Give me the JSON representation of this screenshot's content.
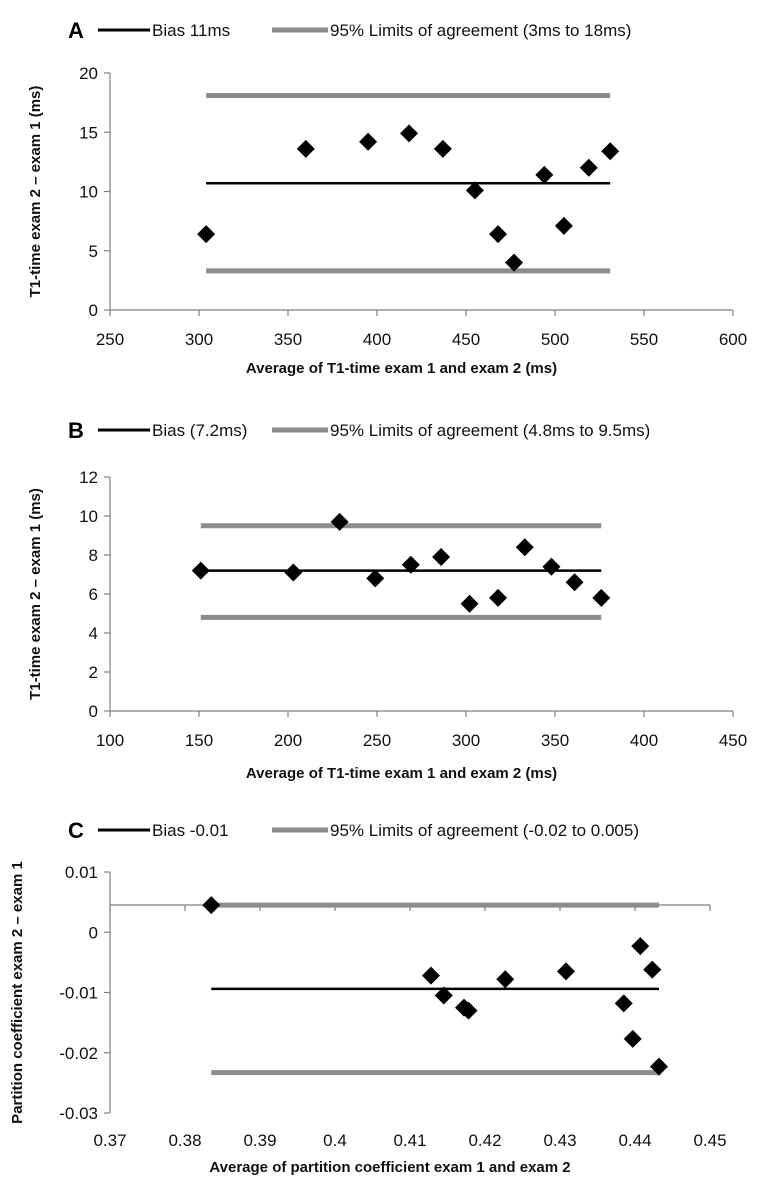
{
  "colors": {
    "bias": "#000000",
    "limits": "#8c8c8c",
    "marker": "#000000",
    "axis": "#7f7f7f"
  },
  "chart_data": [
    {
      "panel": "A",
      "type": "scatter",
      "legend": {
        "bias": "Bias 11ms",
        "limits": "95% Limits of agreement (3ms to 18ms)"
      },
      "xlabel": "Average of T1-time exam 1 and exam 2 (ms)",
      "ylabel": "T1-time exam 2 – exam 1 (ms)",
      "xlim": [
        250,
        600
      ],
      "ylim": [
        0,
        20
      ],
      "xticks": [
        250,
        300,
        350,
        400,
        450,
        500,
        550,
        600
      ],
      "xtick_labels": [
        "250",
        "300",
        "350",
        "400",
        "450",
        "500",
        "550",
        "600"
      ],
      "yticks": [
        0,
        5,
        10,
        15,
        20
      ],
      "ytick_labels": [
        "0",
        "5",
        "10",
        "15",
        "20"
      ],
      "x": [
        304,
        360,
        395,
        418,
        437,
        455,
        468,
        477,
        494,
        505,
        519,
        531
      ],
      "y": [
        6.4,
        13.6,
        14.2,
        14.9,
        13.6,
        10.1,
        6.4,
        4.0,
        11.4,
        7.1,
        12.0,
        13.4
      ],
      "bias": 10.7,
      "limits": [
        3.3,
        18.1
      ],
      "line_x": [
        304,
        531
      ]
    },
    {
      "panel": "B",
      "type": "scatter",
      "legend": {
        "bias": "Bias (7.2ms)",
        "limits": "95% Limits of agreement (4.8ms to 9.5ms)"
      },
      "xlabel": "Average of T1-time exam 1 and exam 2 (ms)",
      "ylabel": "T1-time exam 2 – exam 1 (ms)",
      "xlim": [
        100,
        450
      ],
      "ylim": [
        0,
        12
      ],
      "xticks": [
        100,
        150,
        200,
        250,
        300,
        350,
        400,
        450
      ],
      "xtick_labels": [
        "100",
        "150",
        "200",
        "250",
        "300",
        "350",
        "400",
        "450"
      ],
      "yticks": [
        0,
        2,
        4,
        6,
        8,
        10,
        12
      ],
      "ytick_labels": [
        "0",
        "2",
        "4",
        "6",
        "8",
        "10",
        "12"
      ],
      "x": [
        151,
        203,
        229,
        249,
        269,
        286,
        302,
        318,
        333,
        348,
        361,
        376
      ],
      "y": [
        7.2,
        7.1,
        9.7,
        6.8,
        7.5,
        7.9,
        5.5,
        5.8,
        8.4,
        7.4,
        6.6,
        5.8
      ],
      "bias": 7.2,
      "limits": [
        4.8,
        9.5
      ],
      "line_x": [
        151,
        376
      ]
    },
    {
      "panel": "C",
      "type": "scatter",
      "legend": {
        "bias": "Bias -0.01",
        "limits": "95% Limits of agreement (-0.02 to 0.005)"
      },
      "xlabel": "Average of partition coefficient exam 1 and exam 2",
      "ylabel": "Partition coefficient exam 2 – exam 1",
      "xlim": [
        0.37,
        0.45
      ],
      "ylim": [
        -0.03,
        0.01
      ],
      "xticks": [
        0.37,
        0.38,
        0.39,
        0.4,
        0.41,
        0.42,
        0.43,
        0.44,
        0.45
      ],
      "xtick_labels": [
        "0.37",
        "0.38",
        "0.39",
        "0.4",
        "0.41",
        "0.42",
        "0.43",
        "0.44",
        "0.45"
      ],
      "yticks": [
        0.01,
        0,
        -0.01,
        -0.02,
        -0.03
      ],
      "ytick_labels": [
        "0.01",
        "0",
        "-0.01",
        "-0.02",
        "-0.03"
      ],
      "x": [
        0.3835,
        0.4128,
        0.4145,
        0.4172,
        0.4178,
        0.4227,
        0.4308,
        0.4385,
        0.4397,
        0.4407,
        0.4423,
        0.4432
      ],
      "y": [
        0.0045,
        -0.0072,
        -0.0105,
        -0.0125,
        -0.013,
        -0.0078,
        -0.0065,
        -0.0118,
        -0.0177,
        -0.0023,
        -0.0062,
        -0.0223
      ],
      "bias": -0.0094,
      "limits": [
        -0.0233,
        0.0045
      ],
      "line_x": [
        0.3835,
        0.4432
      ]
    }
  ]
}
